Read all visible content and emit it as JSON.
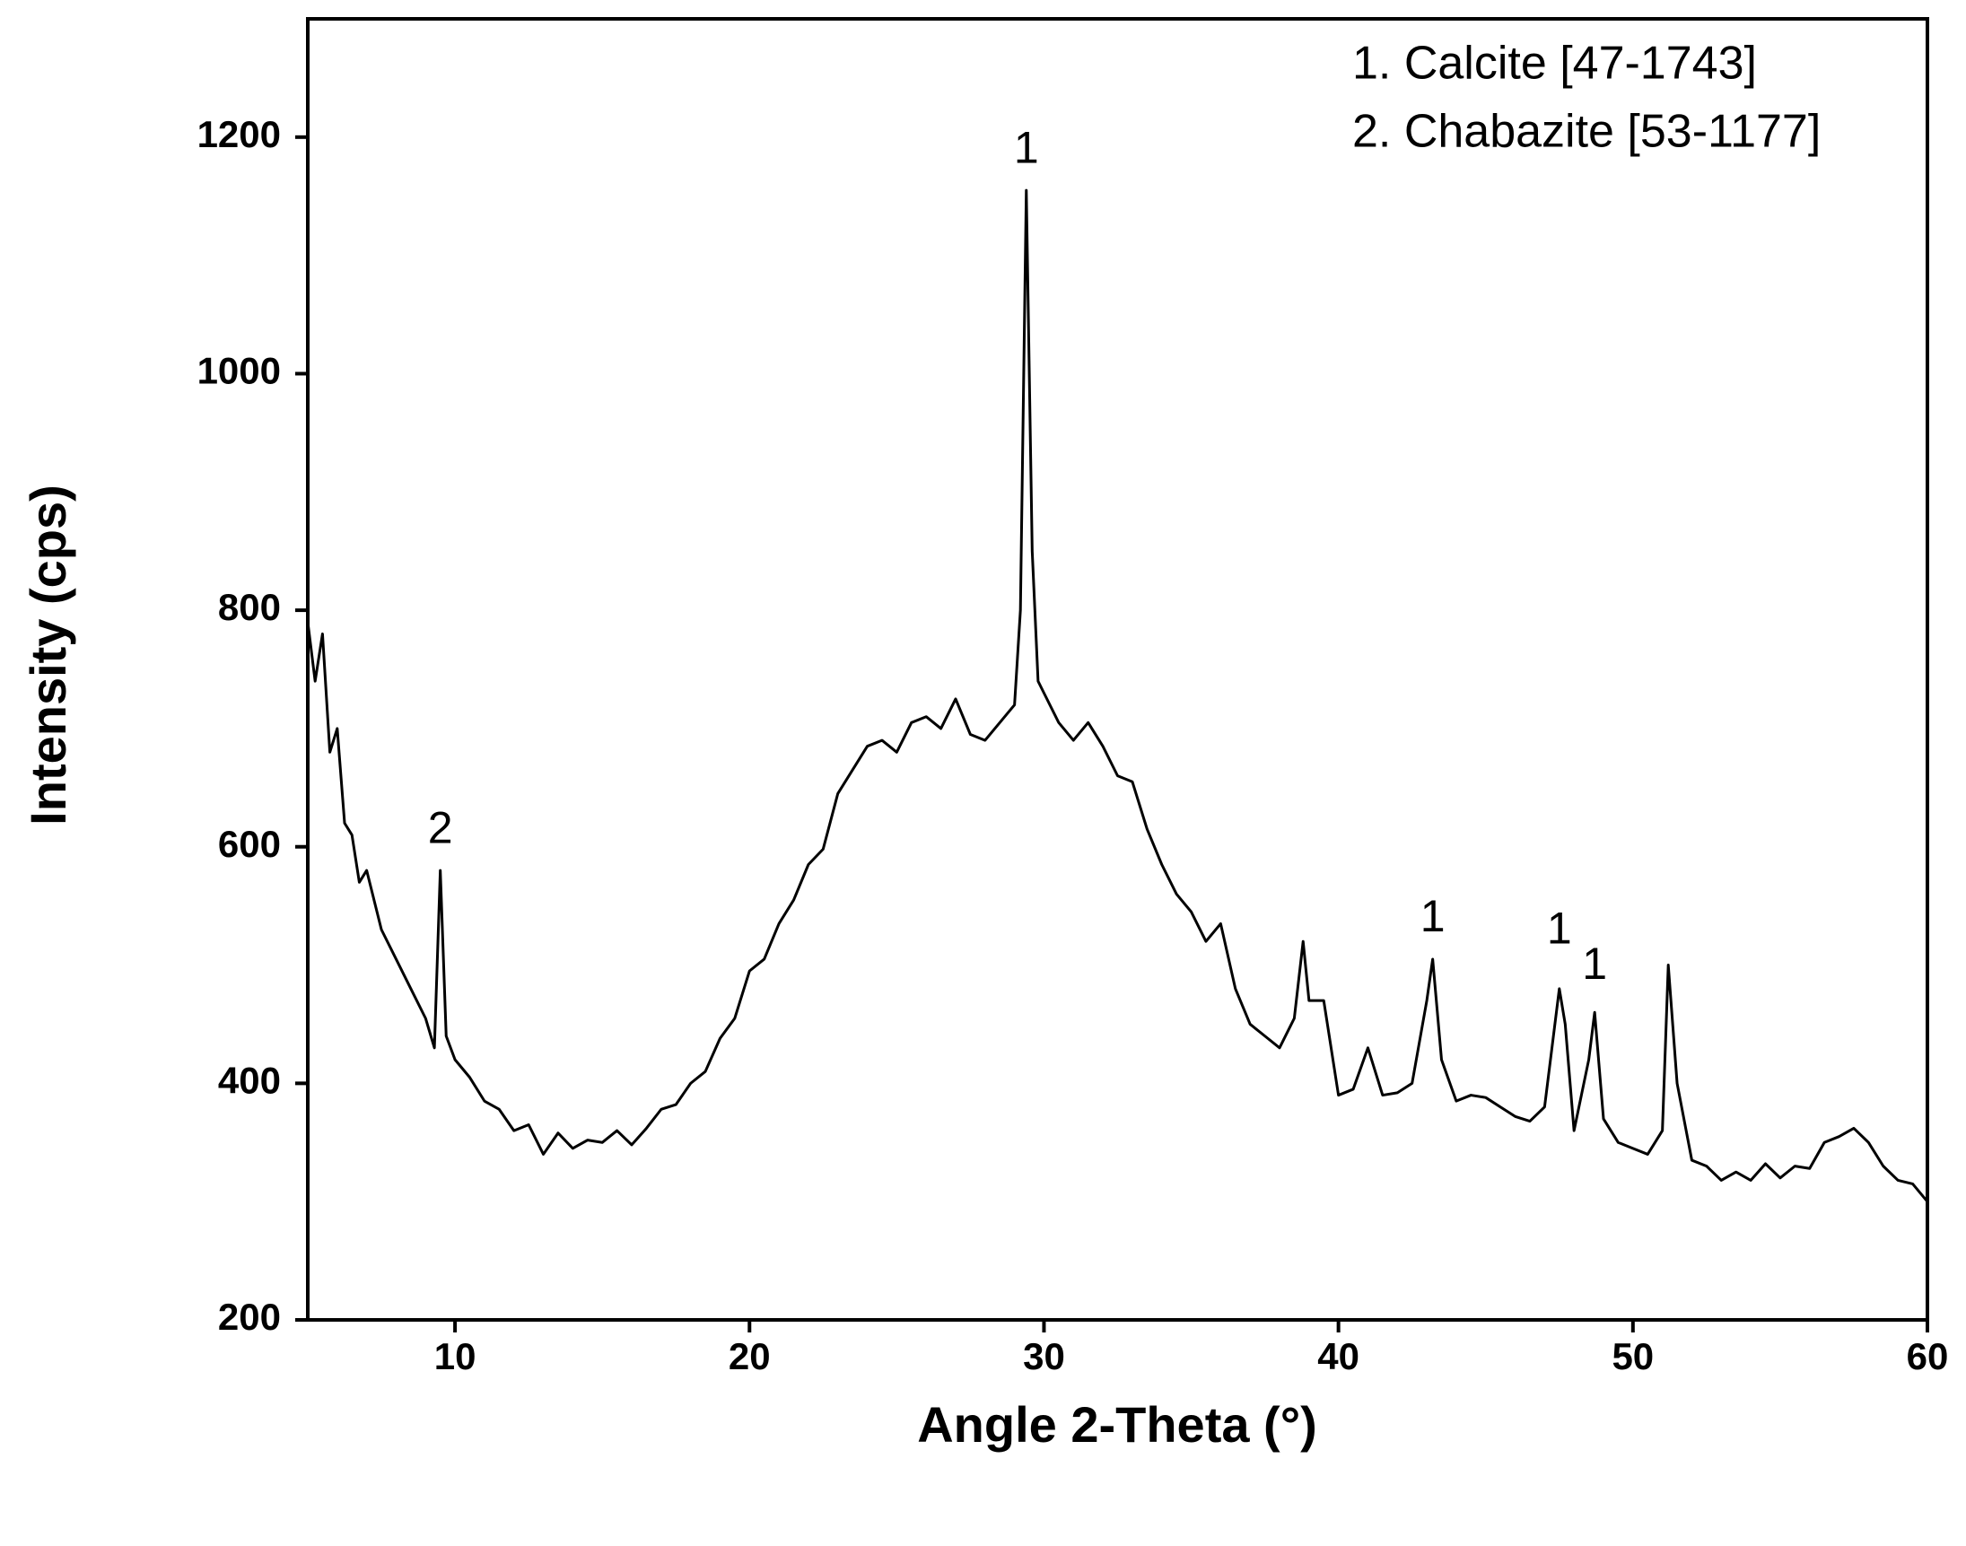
{
  "chart_data": {
    "type": "line",
    "xlabel": "Angle 2-Theta (°)",
    "ylabel": "Intensity (cps)",
    "xlim": [
      5,
      60
    ],
    "ylim": [
      200,
      1300
    ],
    "xticks": [
      10,
      20,
      30,
      40,
      50,
      60
    ],
    "yticks": [
      200,
      400,
      600,
      800,
      1000,
      1200
    ],
    "color": "#000000",
    "notes": [
      "1. Calcite [47-1743]",
      "2. Chabazite [53-1177]"
    ],
    "annotations": [
      {
        "text": "2",
        "x": 9.5,
        "y": 580
      },
      {
        "text": "1",
        "x": 29.4,
        "y": 1155
      },
      {
        "text": "1",
        "x": 43.2,
        "y": 505
      },
      {
        "text": "1",
        "x": 47.5,
        "y": 495
      },
      {
        "text": "1",
        "x": 48.7,
        "y": 465
      }
    ],
    "x": [
      5,
      5.25,
      5.5,
      5.75,
      6,
      6.25,
      6.5,
      6.75,
      7,
      7.5,
      8,
      8.5,
      9,
      9.3,
      9.5,
      9.7,
      10,
      10.5,
      11,
      11.5,
      12,
      12.5,
      13,
      13.5,
      14,
      14.5,
      15,
      15.5,
      16,
      16.5,
      17,
      17.5,
      18,
      18.5,
      19,
      19.5,
      20,
      20.5,
      21,
      21.5,
      22,
      22.5,
      23,
      23.5,
      24,
      24.5,
      25,
      25.5,
      26,
      26.5,
      27,
      27.5,
      28,
      28.5,
      29,
      29.2,
      29.4,
      29.6,
      29.8,
      30,
      30.5,
      31,
      31.5,
      32,
      32.5,
      33,
      33.5,
      34,
      34.5,
      35,
      35.5,
      36,
      36.5,
      37,
      37.5,
      38,
      38.5,
      38.8,
      39,
      39.5,
      40,
      40.5,
      41,
      41.5,
      42,
      42.5,
      43,
      43.2,
      43.5,
      44,
      44.5,
      45,
      45.5,
      46,
      46.5,
      47,
      47.5,
      47.7,
      48,
      48.5,
      48.7,
      49,
      49.5,
      50,
      50.5,
      51,
      51.2,
      51.5,
      52,
      52.5,
      53,
      53.5,
      54,
      54.5,
      55,
      55.5,
      56,
      56.5,
      57,
      57.5,
      58,
      58.5,
      59,
      59.5,
      60
    ],
    "values": [
      790,
      740,
      780,
      680,
      700,
      620,
      610,
      570,
      580,
      530,
      505,
      480,
      455,
      430,
      580,
      440,
      420,
      405,
      385,
      378,
      360,
      365,
      340,
      358,
      345,
      352,
      350,
      360,
      348,
      362,
      378,
      382,
      400,
      410,
      438,
      455,
      495,
      505,
      535,
      555,
      585,
      598,
      645,
      665,
      685,
      690,
      680,
      705,
      710,
      700,
      725,
      695,
      690,
      705,
      720,
      800,
      1155,
      850,
      740,
      730,
      705,
      690,
      705,
      685,
      660,
      655,
      615,
      585,
      560,
      545,
      520,
      535,
      480,
      450,
      440,
      430,
      455,
      520,
      470,
      470,
      390,
      395,
      430,
      390,
      392,
      400,
      470,
      505,
      420,
      385,
      390,
      388,
      380,
      372,
      368,
      380,
      480,
      450,
      360,
      420,
      460,
      370,
      350,
      345,
      340,
      360,
      500,
      400,
      335,
      330,
      318,
      325,
      318,
      332,
      320,
      330,
      328,
      350,
      355,
      362,
      350,
      330,
      318,
      315,
      300
    ]
  }
}
